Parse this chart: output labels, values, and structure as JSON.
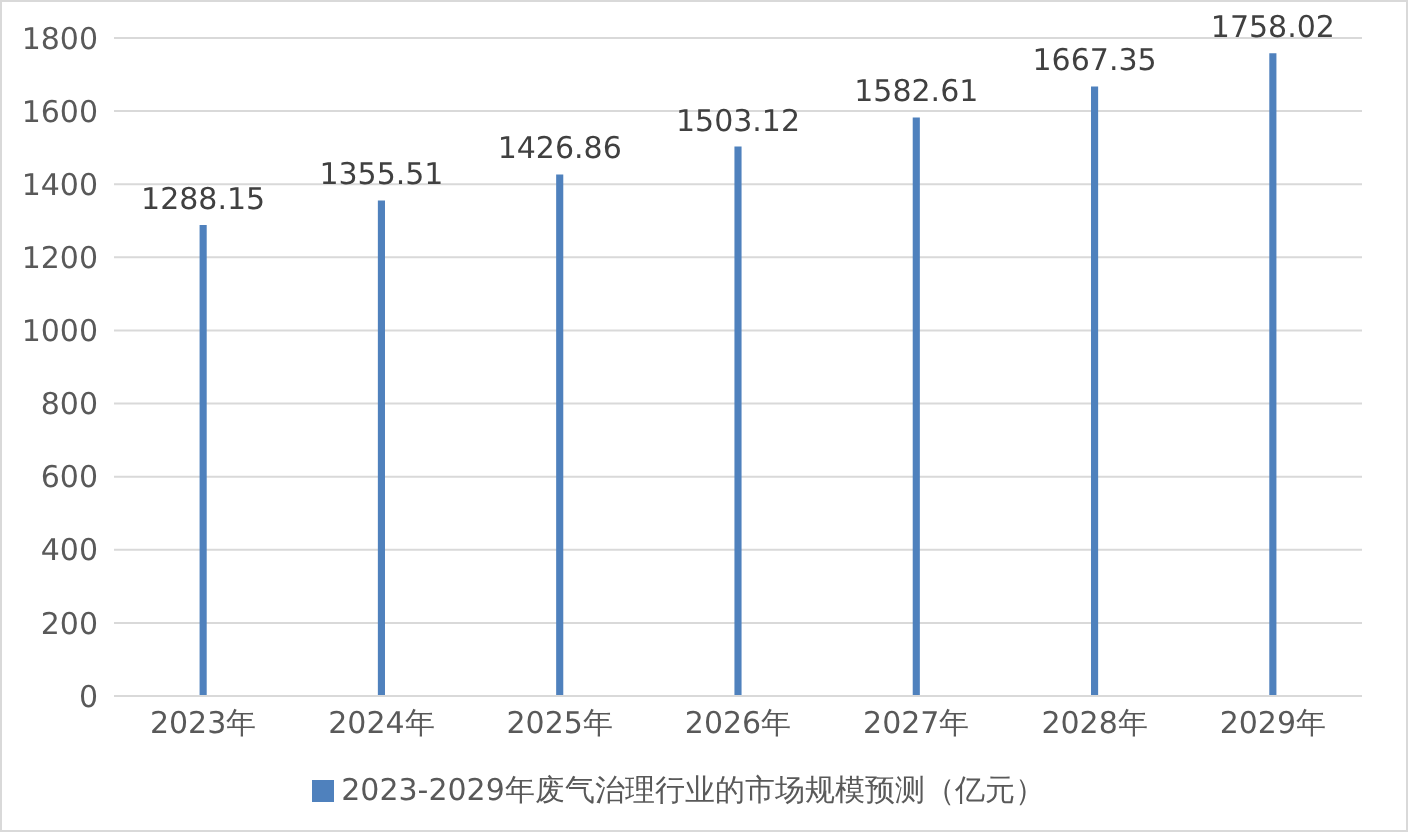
{
  "chart_data": {
    "type": "bar",
    "categories": [
      "2023年",
      "2024年",
      "2025年",
      "2026年",
      "2027年",
      "2028年",
      "2029年"
    ],
    "series": [
      {
        "name": "2023-2029年废气治理行业的市场规模预测（亿元）",
        "color": "#4f81bd",
        "values": [
          1288.15,
          1355.51,
          1426.86,
          1503.12,
          1582.61,
          1667.35,
          1758.02
        ]
      }
    ],
    "ylim": [
      0,
      1800
    ],
    "yticks": [
      0,
      200,
      400,
      600,
      800,
      1000,
      1200,
      1400,
      1600,
      1800
    ],
    "grid": "y",
    "legend": "bottom",
    "data_labels": true
  }
}
